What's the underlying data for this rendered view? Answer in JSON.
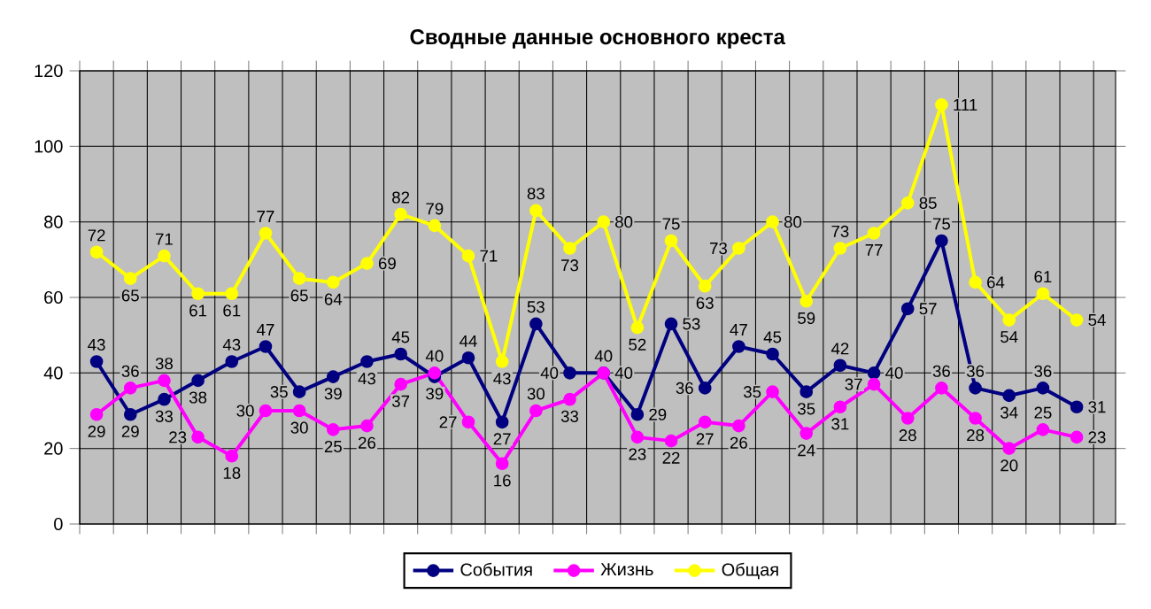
{
  "chart_data": {
    "type": "line",
    "title": "Сводные данные основного креста",
    "categories": [
      null,
      null,
      null,
      null,
      null,
      null,
      null,
      null,
      null,
      null,
      null,
      null,
      null,
      null,
      null,
      null,
      null,
      null,
      null,
      null,
      null,
      null,
      null,
      null,
      null,
      null,
      null,
      null,
      null,
      null
    ],
    "series": [
      {
        "name": "События",
        "color": "#000080",
        "values": [
          43,
          29,
          33,
          38,
          43,
          47,
          35,
          39,
          43,
          45,
          39,
          44,
          27,
          53,
          40,
          40,
          29,
          53,
          36,
          47,
          45,
          35,
          42,
          40,
          57,
          75,
          36,
          34,
          36,
          31
        ]
      },
      {
        "name": "Жизнь",
        "color": "#ff00ff",
        "values": [
          29,
          36,
          38,
          23,
          18,
          30,
          30,
          25,
          26,
          37,
          40,
          27,
          16,
          30,
          33,
          40,
          23,
          22,
          27,
          26,
          35,
          24,
          31,
          37,
          28,
          36,
          28,
          20,
          25,
          23
        ]
      },
      {
        "name": "Общая",
        "color": "#ffff00",
        "values": [
          72,
          65,
          71,
          61,
          61,
          77,
          65,
          64,
          69,
          82,
          79,
          71,
          43,
          83,
          73,
          80,
          52,
          75,
          63,
          73,
          80,
          59,
          73,
          77,
          85,
          111,
          64,
          54,
          61,
          54
        ]
      }
    ],
    "ylim": [
      0,
      120
    ],
    "yticks": [
      0,
      20,
      40,
      60,
      80,
      100,
      120
    ],
    "grid": true,
    "legend": "bottom",
    "marker": "circle",
    "line_style": "solid",
    "data_labels": true
  }
}
